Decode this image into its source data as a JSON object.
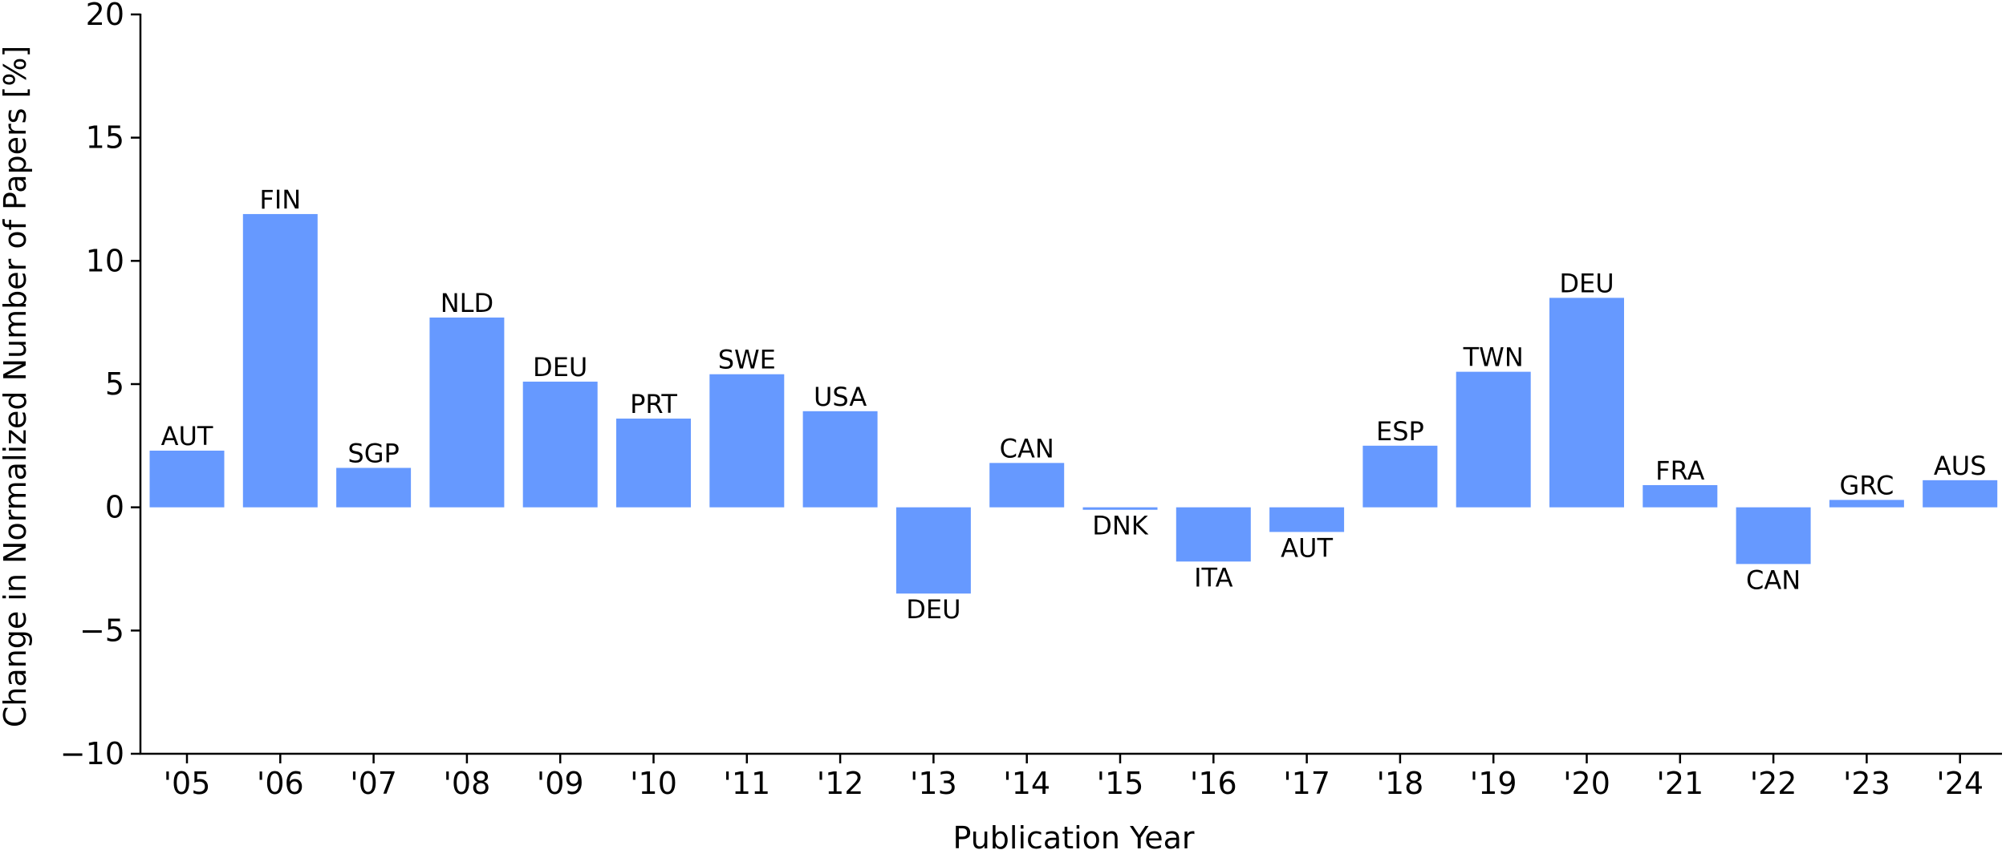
{
  "chart_data": {
    "type": "bar",
    "title": "",
    "xlabel": "Publication Year",
    "ylabel": "Change in Normalized Number of Papers [%]",
    "ylim": [
      -10,
      20
    ],
    "yticks": [
      -10,
      -5,
      0,
      5,
      10,
      15,
      20
    ],
    "ytick_labels": [
      "−10",
      "−5",
      "0",
      "5",
      "10",
      "15",
      "20"
    ],
    "categories": [
      "'05",
      "'06",
      "'07",
      "'08",
      "'09",
      "'10",
      "'11",
      "'12",
      "'13",
      "'14",
      "'15",
      "'16",
      "'17",
      "'18",
      "'19",
      "'20",
      "'21",
      "'22",
      "'23",
      "'24"
    ],
    "values": [
      2.3,
      11.9,
      1.6,
      7.7,
      5.1,
      3.6,
      5.4,
      3.9,
      -3.5,
      1.8,
      -0.1,
      -2.2,
      -1.0,
      2.5,
      5.5,
      8.5,
      0.9,
      -2.3,
      0.3,
      1.1
    ],
    "bar_labels": [
      "AUT",
      "FIN",
      "SGP",
      "NLD",
      "DEU",
      "PRT",
      "SWE",
      "USA",
      "DEU",
      "CAN",
      "DNK",
      "ITA",
      "AUT",
      "ESP",
      "TWN",
      "DEU",
      "FRA",
      "CAN",
      "GRC",
      "AUS"
    ],
    "bar_color": "#6699ff",
    "grid": false
  }
}
